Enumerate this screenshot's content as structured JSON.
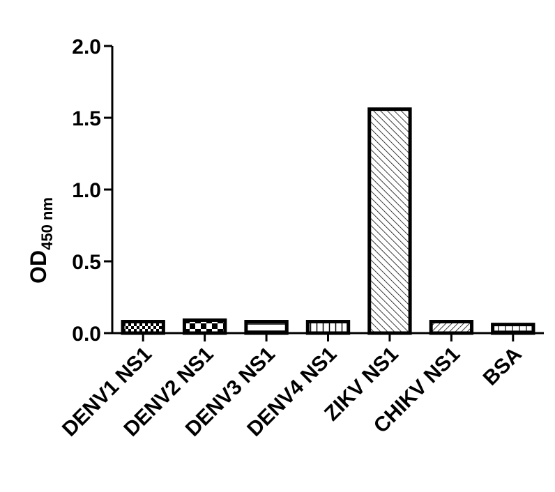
{
  "chart_data": {
    "type": "bar",
    "title": "",
    "xlabel": "",
    "ylabel": "OD",
    "ylabel_subscript": "450 nm",
    "categories": [
      "DENV1 NS1",
      "DENV2 NS1",
      "DENV3 NS1",
      "DENV4 NS1",
      "ZIKV NS1",
      "CHIKV NS1",
      "BSA"
    ],
    "values": [
      0.08,
      0.09,
      0.08,
      0.08,
      1.56,
      0.08,
      0.06
    ],
    "patterns": [
      "checker-small",
      "checker-large",
      "horizontal-lines",
      "vertical-lines",
      "diagonal-dense",
      "diagonal-wide",
      "grid"
    ],
    "ylim": [
      0,
      2.0
    ],
    "yticks": [
      "0.0",
      "0.5",
      "1.0",
      "1.5",
      "2.0"
    ],
    "ytick_values": [
      0,
      0.5,
      1.0,
      1.5,
      2.0
    ],
    "grid": false,
    "legend": "none",
    "bar_fill": "#ffffff",
    "bar_stroke": "#000000"
  }
}
